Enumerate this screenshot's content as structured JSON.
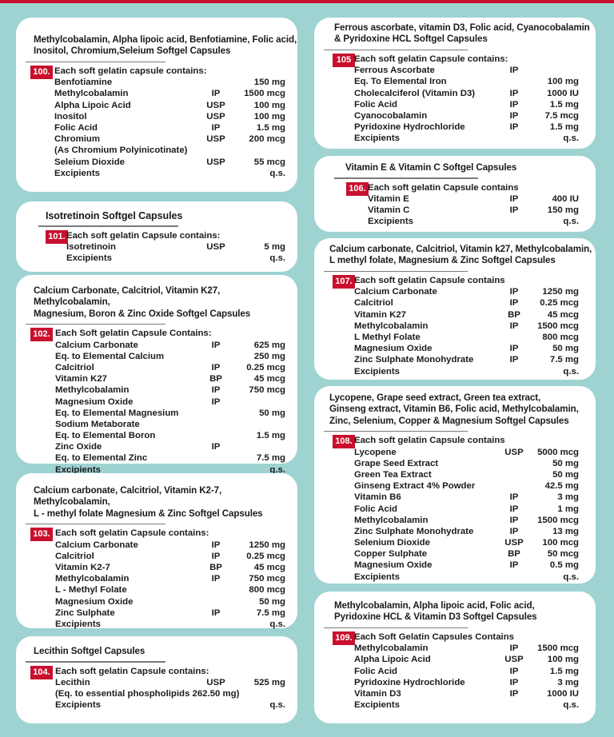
{
  "colors": {
    "background": "#9ed3d2",
    "card": "#ffffff",
    "badge": "#c8102e"
  },
  "cards": [
    {
      "number": "100.",
      "title": [
        "Methylcobalamin, Alpha lipoic acid, Benfotiamine, Folic acid,",
        "Inositol, Chromium,Seleium  Softgel Capsules"
      ],
      "intro": "Each soft gelatin capsule contains:",
      "rows": [
        [
          "Benfotiamine",
          "",
          "150 mg"
        ],
        [
          "Methylcobalamin",
          "IP",
          "1500 mcg"
        ],
        [
          "Alpha Lipoic Acid",
          "USP",
          "100 mg"
        ],
        [
          "Inositol",
          "USP",
          "100 mg"
        ],
        [
          "Folic Acid",
          "IP",
          "1.5 mg"
        ],
        [
          "Chromium",
          "USP",
          "200 mcg"
        ],
        [
          "(As Chromium Polyinicotinate)",
          "",
          ""
        ],
        [
          "Seleium Dioxide",
          "USP",
          "55 mcg"
        ],
        [
          "Excipients",
          "",
          "q.s."
        ]
      ]
    },
    {
      "number": "101.",
      "title": [
        "Isotretinoin Softgel Capsules"
      ],
      "intro": "Each soft gelatin Capsule contains:",
      "rows": [
        [
          "Isotretinoin",
          "USP",
          "5 mg"
        ],
        [
          "Excipients",
          "",
          "q.s."
        ]
      ]
    },
    {
      "number": "102.",
      "title": [
        "Calcium Carbonate, Calcitriol, Vitamin K27, Methylcobalamin,",
        "Magnesium, Boron & Zinc Oxide Softgel Capsules"
      ],
      "intro": "Each Soft gelatin Capsule Contains:",
      "rows": [
        [
          "Calcium Carbonate",
          "IP",
          "625 mg"
        ],
        [
          "Eq. to Elemental Calcium",
          "",
          "250 mg"
        ],
        [
          "Calcitriol",
          "IP",
          "0.25 mcg"
        ],
        [
          "Vitamin K27",
          "BP",
          "45 mcg"
        ],
        [
          "Methylcobalamin",
          "IP",
          "750 mcg"
        ],
        [
          "Magnesium Oxide",
          "IP",
          ""
        ],
        [
          "Eq. to Elemental Magnesium",
          "",
          "50 mg"
        ],
        [
          "Sodium Metaborate",
          "",
          ""
        ],
        [
          "Eq. to Elemental Boron",
          "",
          "1.5 mg"
        ],
        [
          "Zinc Oxide",
          "IP",
          ""
        ],
        [
          "Eq. to Elemental Zinc",
          "",
          "7.5 mg"
        ],
        [
          "Excipients",
          "",
          "q.s."
        ]
      ]
    },
    {
      "number": "103.",
      "title": [
        "Calcium carbonate, Calcitriol, Vitamin K2-7, Methylcobalamin,",
        "L - methyl folate Magnesium & Zinc Softgel Capsules"
      ],
      "intro": "Each soft gelatin Capsule contains:",
      "rows": [
        [
          "Calcium Carbonate",
          "IP",
          "1250 mg"
        ],
        [
          "Calcitriol",
          "IP",
          "0.25 mcg"
        ],
        [
          "Vitamin K2-7",
          "BP",
          "45 mcg"
        ],
        [
          "Methylcobalamin",
          "IP",
          "750 mcg"
        ],
        [
          "L - Methyl Folate",
          "",
          "800 mcg"
        ],
        [
          "Magnesium Oxide",
          "",
          "50 mg"
        ],
        [
          "Zinc Sulphate",
          "IP",
          "7.5 mg"
        ],
        [
          "Excipients",
          "",
          "q.s."
        ]
      ]
    },
    {
      "number": "104.",
      "title": [
        "Lecithin Softgel Capsules"
      ],
      "intro": "Each soft gelatin Capsule contains:",
      "rows": [
        [
          "Lecithin",
          "USP",
          "525 mg"
        ],
        [
          "(Eq. to essential phospholipids 262.50 mg)",
          "",
          ""
        ],
        [
          "Excipients",
          "",
          "q.s."
        ]
      ]
    },
    {
      "number": "105",
      "title": [
        "Ferrous ascorbate, vitamin D3, Folic acid, Cyanocobalamin",
        "& Pyridoxine HCL Softgel Capsules"
      ],
      "intro": "Each soft gelatin Capsule contains:",
      "rows": [
        [
          "Ferrous Ascorbate",
          "IP",
          ""
        ],
        [
          "Eq. To Elemental Iron",
          "",
          "100 mg"
        ],
        [
          "Cholecalciferol (Vitamin D3)",
          "IP",
          "1000 IU"
        ],
        [
          "Folic Acid",
          "IP",
          "1.5 mg"
        ],
        [
          "Cyanocobalamin",
          "IP",
          "7.5 mcg"
        ],
        [
          "Pyridoxine Hydrochloride",
          "IP",
          "1.5 mg"
        ],
        [
          "Excipients",
          "",
          "q.s."
        ]
      ]
    },
    {
      "number": "106.",
      "title": [
        "Vitamin E & Vitamin C Softgel Capsules"
      ],
      "intro": "Each soft gelatin Capsule contains",
      "rows": [
        [
          "Vitamin E",
          "IP",
          "400 IU"
        ],
        [
          "Vitamin C",
          "IP",
          "150 mg"
        ],
        [
          "Excipients",
          "",
          "q.s."
        ]
      ]
    },
    {
      "number": "107.",
      "title": [
        "Calcium carbonate, Calcitriol, Vitamin k27, Methylcobalamin,",
        "L methyl folate, Magnesium & Zinc Softgel Capsules"
      ],
      "intro": "Each soft gelatin Capsule contains",
      "rows": [
        [
          "Calcium Carbonate",
          "IP",
          "1250 mg"
        ],
        [
          "Calcitriol",
          "IP",
          "0.25 mcg"
        ],
        [
          "Vitamin K27",
          "BP",
          "45 mcg"
        ],
        [
          "Methylcobalamin",
          "IP",
          "1500 mcg"
        ],
        [
          "L Methyl Folate",
          "",
          "800 mcg"
        ],
        [
          "Magnesium Oxide",
          "IP",
          "50 mg"
        ],
        [
          "Zinc Sulphate Monohydrate",
          "IP",
          "7.5 mg"
        ],
        [
          "Excipients",
          "",
          "q.s."
        ]
      ]
    },
    {
      "number": "108.",
      "title": [
        "Lycopene, Grape seed extract, Green tea extract,",
        "Ginseng extract, Vitamin B6, Folic acid, Methylcobalamin,",
        "Zinc, Selenium, Copper & Magnesium Softgel Capsules"
      ],
      "intro": "Each soft gelatin Capsule contains",
      "rows": [
        [
          "Lycopene",
          "USP",
          "5000 mcg"
        ],
        [
          "Grape Seed Extract",
          "",
          "50 mg"
        ],
        [
          "Green Tea Extract",
          "",
          "50 mg"
        ],
        [
          "Ginseng Extract 4% Powder",
          "",
          "42.5 mg"
        ],
        [
          "Vitamin B6",
          "IP",
          "3 mg"
        ],
        [
          "Folic Acid",
          "IP",
          "1 mg"
        ],
        [
          "Methylcobalamin",
          "IP",
          "1500 mcg"
        ],
        [
          "Zinc Sulphate Monohydrate",
          "IP",
          "13 mg"
        ],
        [
          "Selenium Dioxide",
          "USP",
          "100 mcg"
        ],
        [
          "Copper Sulphate",
          "BP",
          "50 mcg"
        ],
        [
          "Magnesium Oxide",
          "IP",
          "0.5 mg"
        ],
        [
          "Excipients",
          "",
          "q.s."
        ]
      ]
    },
    {
      "number": "109.",
      "title": [
        "Methylcobalamin, Alpha lipoic acid, Folic acid,",
        "Pyridoxine HCL & Vitamin D3  Softgel Capsules"
      ],
      "intro": "Each Soft Gelatin Capsules Contains",
      "rows": [
        [
          "Methylcobalamin",
          "IP",
          "1500 mcg"
        ],
        [
          "Alpha Lipoic Acid",
          "USP",
          "100 mg"
        ],
        [
          "Folic Acid",
          "IP",
          "1.5 mg"
        ],
        [
          "Pyridoxine Hydrochloride",
          "IP",
          "3 mg"
        ],
        [
          "Vitamin D3",
          "IP",
          "1000 IU"
        ],
        [
          "Excipients",
          "",
          "q.s."
        ]
      ]
    }
  ]
}
